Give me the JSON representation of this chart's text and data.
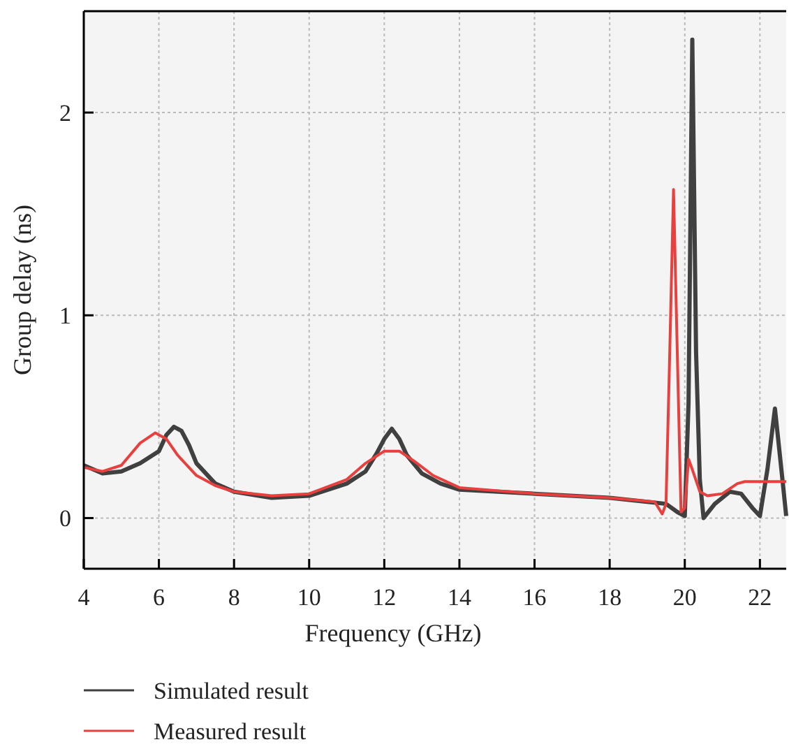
{
  "chart_data": {
    "type": "line",
    "xlabel": "Frequency (GHz)",
    "ylabel": "Group delay (ns)",
    "xlim": [
      4,
      22.7
    ],
    "xticks": [
      4,
      6,
      8,
      10,
      12,
      14,
      16,
      18,
      20,
      22
    ],
    "ylim": [
      -0.25,
      2.5
    ],
    "yticks": [
      0,
      1,
      2
    ],
    "grid": true,
    "legend": "bottom",
    "line_style": "solid",
    "marker": "none",
    "series": [
      {
        "name": "Simulated result",
        "color": "#404040",
        "x": [
          4,
          4.5,
          5,
          5.5,
          6,
          6.2,
          6.4,
          6.6,
          6.8,
          7,
          7.5,
          8,
          9,
          10,
          11,
          11.5,
          11.8,
          12,
          12.2,
          12.4,
          12.6,
          13,
          13.5,
          14,
          16,
          18,
          19,
          19.5,
          19.8,
          20,
          20.1,
          20.2,
          20.3,
          20.4,
          20.5,
          20.8,
          21.2,
          21.5,
          21.8,
          22,
          22.2,
          22.4,
          22.6,
          22.7
        ],
        "values": [
          0.26,
          0.22,
          0.23,
          0.27,
          0.33,
          0.41,
          0.45,
          0.43,
          0.36,
          0.27,
          0.17,
          0.13,
          0.1,
          0.11,
          0.17,
          0.23,
          0.32,
          0.39,
          0.44,
          0.39,
          0.31,
          0.22,
          0.17,
          0.14,
          0.12,
          0.1,
          0.08,
          0.07,
          0.03,
          0.01,
          0.57,
          2.36,
          0.82,
          0.19,
          0,
          0.07,
          0.13,
          0.12,
          0.05,
          0.01,
          0.24,
          0.54,
          0.19,
          0.01
        ]
      },
      {
        "name": "Measured result",
        "color": "#e8403e",
        "x": [
          4,
          4.5,
          5,
          5.5,
          5.9,
          6.2,
          6.5,
          7,
          7.5,
          8,
          9,
          10,
          11,
          11.5,
          12,
          12.4,
          12.8,
          13.3,
          14,
          16,
          18,
          19.2,
          19.4,
          19.5,
          19.6,
          19.7,
          19.8,
          19.9,
          20,
          20.1,
          20.2,
          20.4,
          20.6,
          21,
          21.4,
          21.6,
          22.7
        ],
        "values": [
          0.25,
          0.23,
          0.26,
          0.37,
          0.42,
          0.39,
          0.31,
          0.21,
          0.16,
          0.13,
          0.11,
          0.12,
          0.19,
          0.27,
          0.33,
          0.33,
          0.28,
          0.21,
          0.15,
          0.12,
          0.1,
          0.08,
          0.02,
          0.07,
          0.82,
          1.62,
          0.82,
          0.03,
          0.05,
          0.29,
          0.24,
          0.13,
          0.11,
          0.12,
          0.17,
          0.18,
          0.18
        ]
      }
    ]
  }
}
